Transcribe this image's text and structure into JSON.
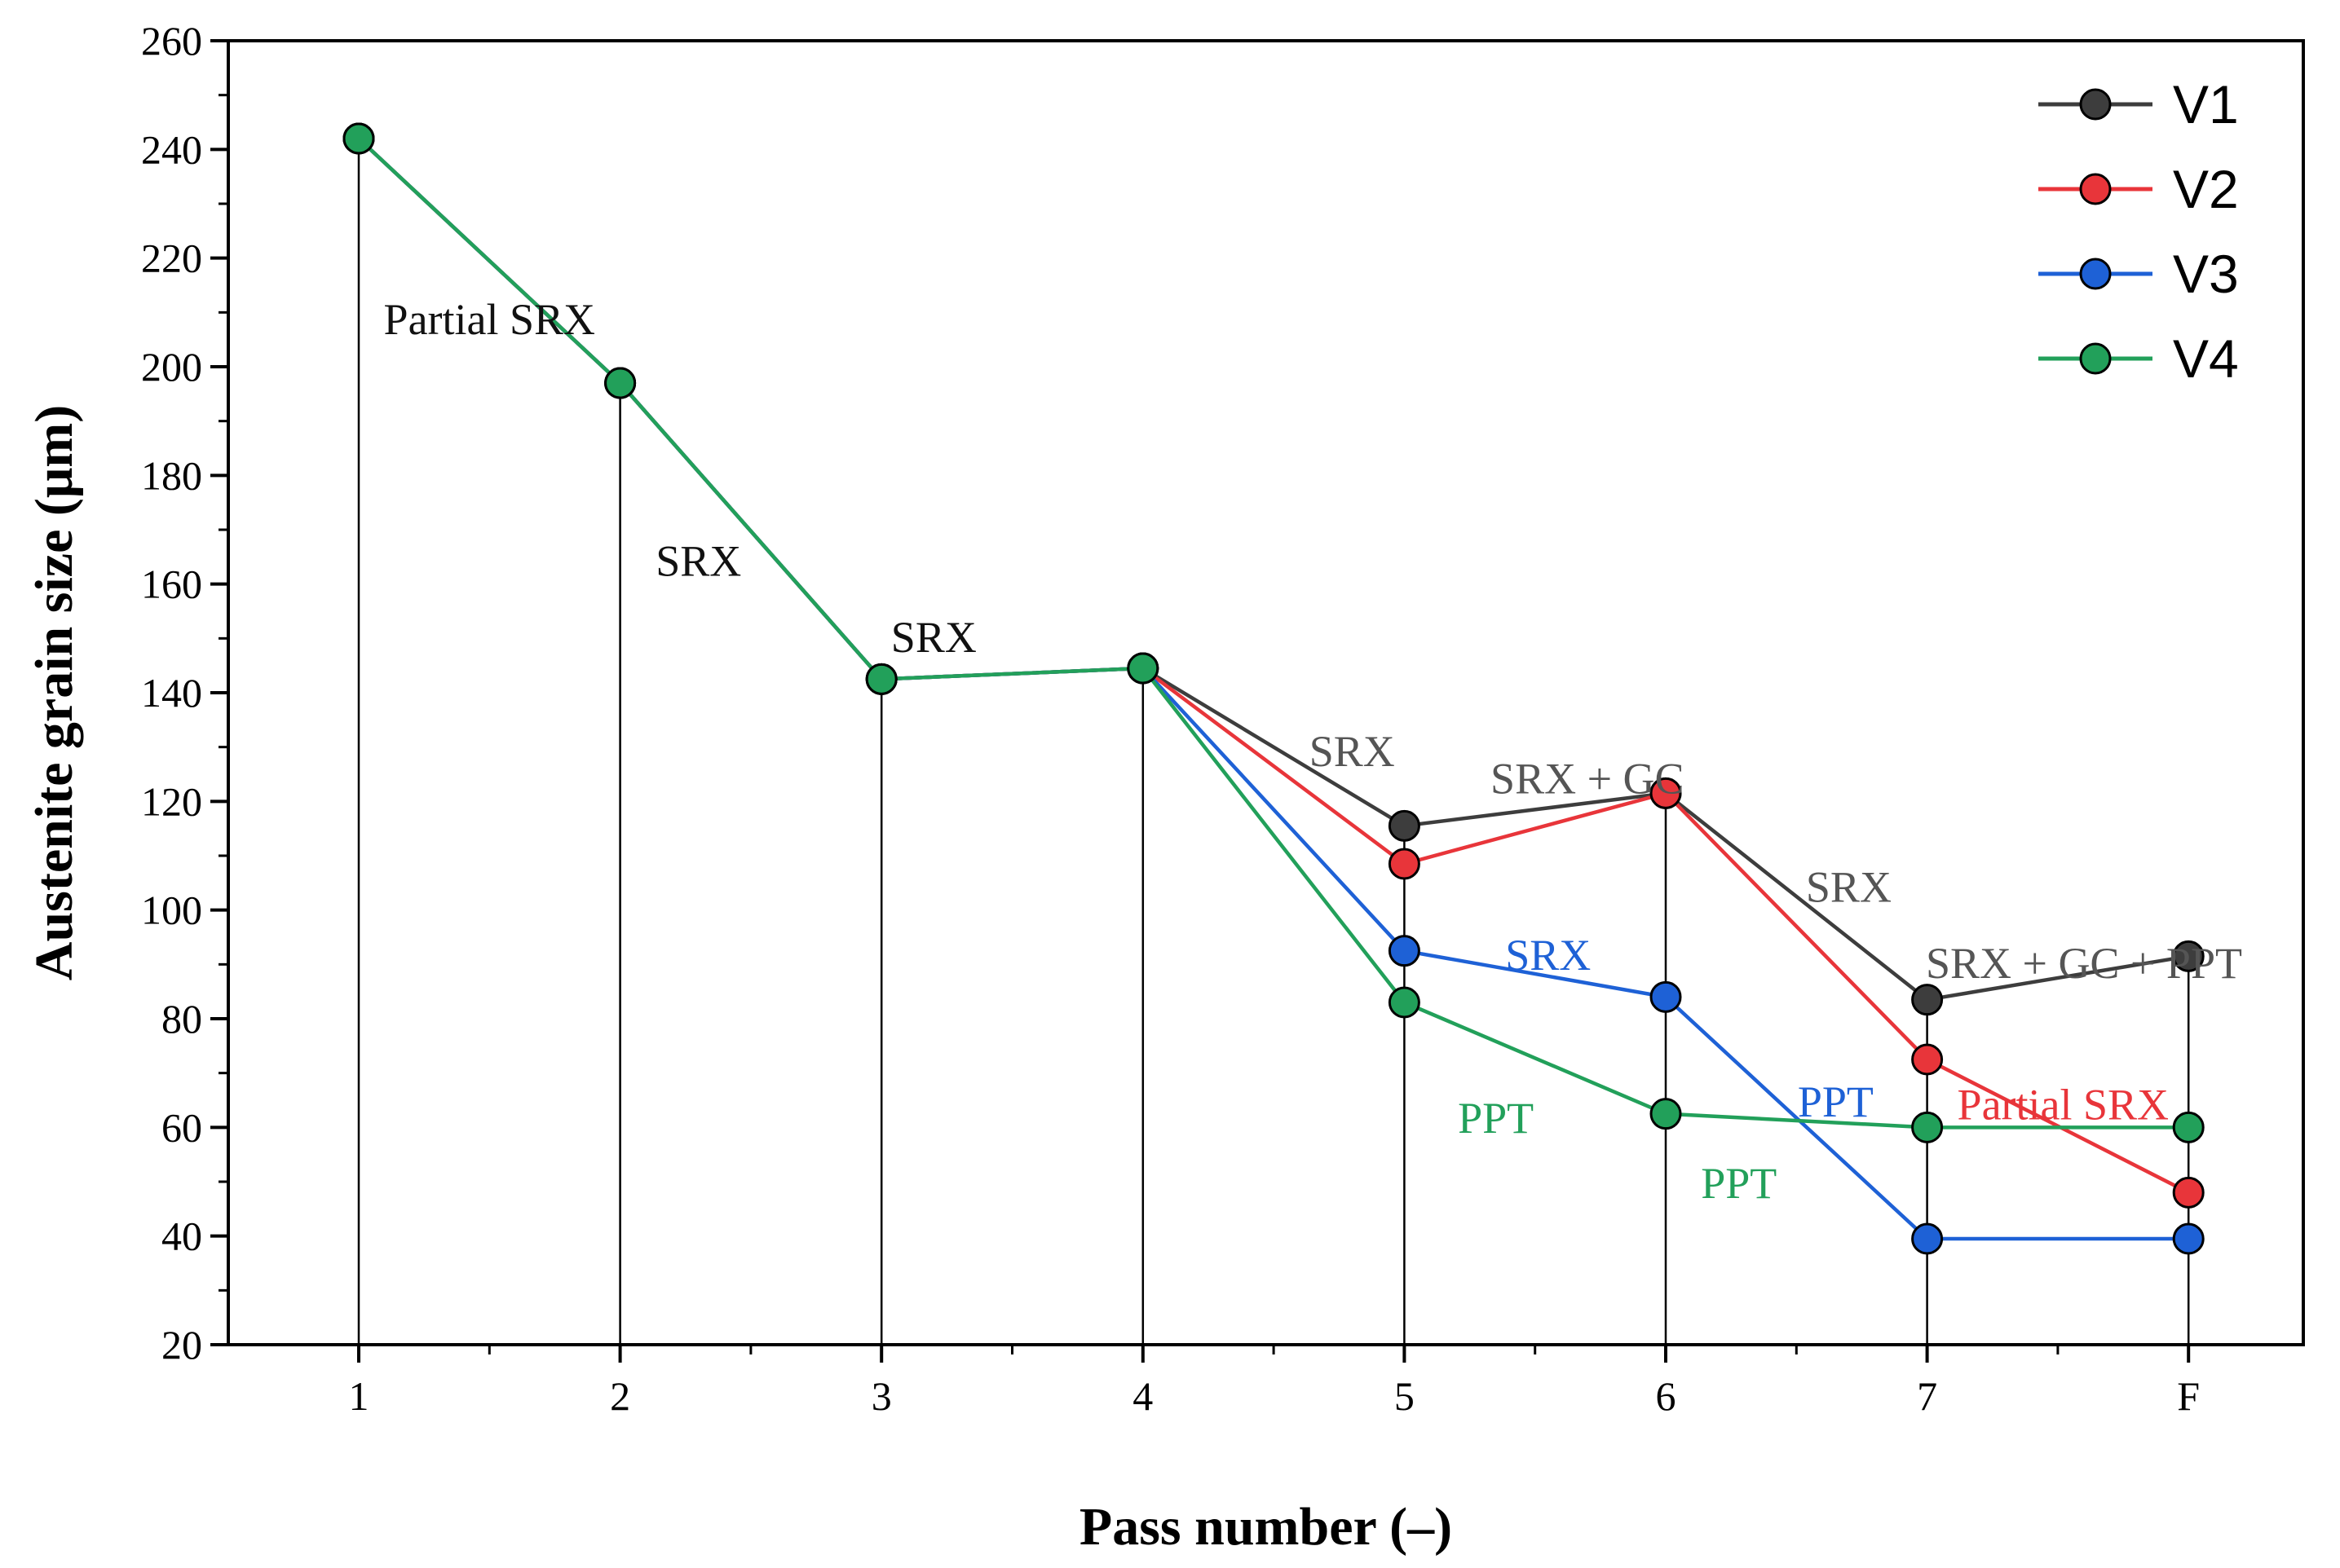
{
  "chart_data": {
    "type": "line",
    "title": "",
    "xlabel": "Pass number (–)",
    "ylabel": "Austenite grain size (μm)",
    "categories": [
      "1",
      "2",
      "3",
      "4",
      "5",
      "6",
      "7",
      "F"
    ],
    "ylim": [
      20,
      260
    ],
    "yticks": [
      20,
      40,
      60,
      80,
      100,
      120,
      140,
      160,
      180,
      200,
      220,
      240,
      260
    ],
    "legend_position": "top-right",
    "grid": false,
    "series": [
      {
        "name": "V1",
        "color": "#3d3d3d",
        "values": [
          242,
          197,
          142.5,
          144.5,
          115.5,
          121.5,
          83.5,
          91.5
        ]
      },
      {
        "name": "V2",
        "color": "#e8353a",
        "values": [
          242,
          197,
          142.5,
          144.5,
          108.5,
          121.5,
          72.5,
          48
        ]
      },
      {
        "name": "V3",
        "color": "#1e61d6",
        "values": [
          242,
          197,
          142.5,
          144.5,
          92.5,
          84,
          39.5,
          39.5
        ]
      },
      {
        "name": "V4",
        "color": "#22a05a",
        "values": [
          242,
          197,
          142.5,
          144.5,
          83,
          62.5,
          60,
          60
        ]
      }
    ],
    "annotations": [
      {
        "text": "Partial SRX",
        "x": 1.5,
        "y": 206,
        "color": "#111111"
      },
      {
        "text": "SRX",
        "x": 2.3,
        "y": 161.5,
        "color": "#111111"
      },
      {
        "text": "SRX",
        "x": 3.2,
        "y": 147.5,
        "color": "#111111"
      },
      {
        "text": "SRX",
        "x": 4.8,
        "y": 126.5,
        "color": "#555555"
      },
      {
        "text": "SRX + GC",
        "x": 5.7,
        "y": 121.5,
        "color": "#555555"
      },
      {
        "text": "SRX",
        "x": 6.7,
        "y": 101.5,
        "color": "#555555"
      },
      {
        "text": "SRX + GC + PPT",
        "x": 7.6,
        "y": 87.5,
        "color": "#555555"
      },
      {
        "text": "SRX",
        "x": 5.55,
        "y": 89,
        "color": "#1e61d6"
      },
      {
        "text": "PPT",
        "x": 6.65,
        "y": 62,
        "color": "#1e61d6"
      },
      {
        "text": "PPT",
        "x": 5.35,
        "y": 59,
        "color": "#22a05a"
      },
      {
        "text": "PPT",
        "x": 6.28,
        "y": 47,
        "color": "#22a05a"
      },
      {
        "text": "Partial SRX",
        "x": 7.52,
        "y": 61.5,
        "color": "#e8353a"
      }
    ]
  }
}
